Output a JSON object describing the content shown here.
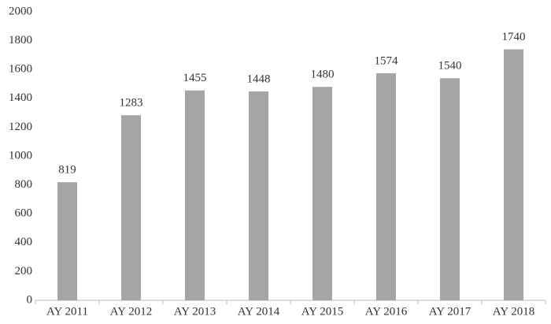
{
  "chart_data": {
    "type": "bar",
    "categories": [
      "AY 2011",
      "AY 2012",
      "AY 2013",
      "AY 2014",
      "AY 2015",
      "AY 2016",
      "AY 2017",
      "AY 2018"
    ],
    "values": [
      819,
      1283,
      1455,
      1448,
      1480,
      1574,
      1540,
      1740
    ],
    "color": "#a5a5a5",
    "ylim": [
      0,
      2000
    ],
    "yticks": [
      0,
      200,
      400,
      600,
      800,
      1000,
      1200,
      1400,
      1600,
      1800,
      2000
    ],
    "grid": false
  }
}
